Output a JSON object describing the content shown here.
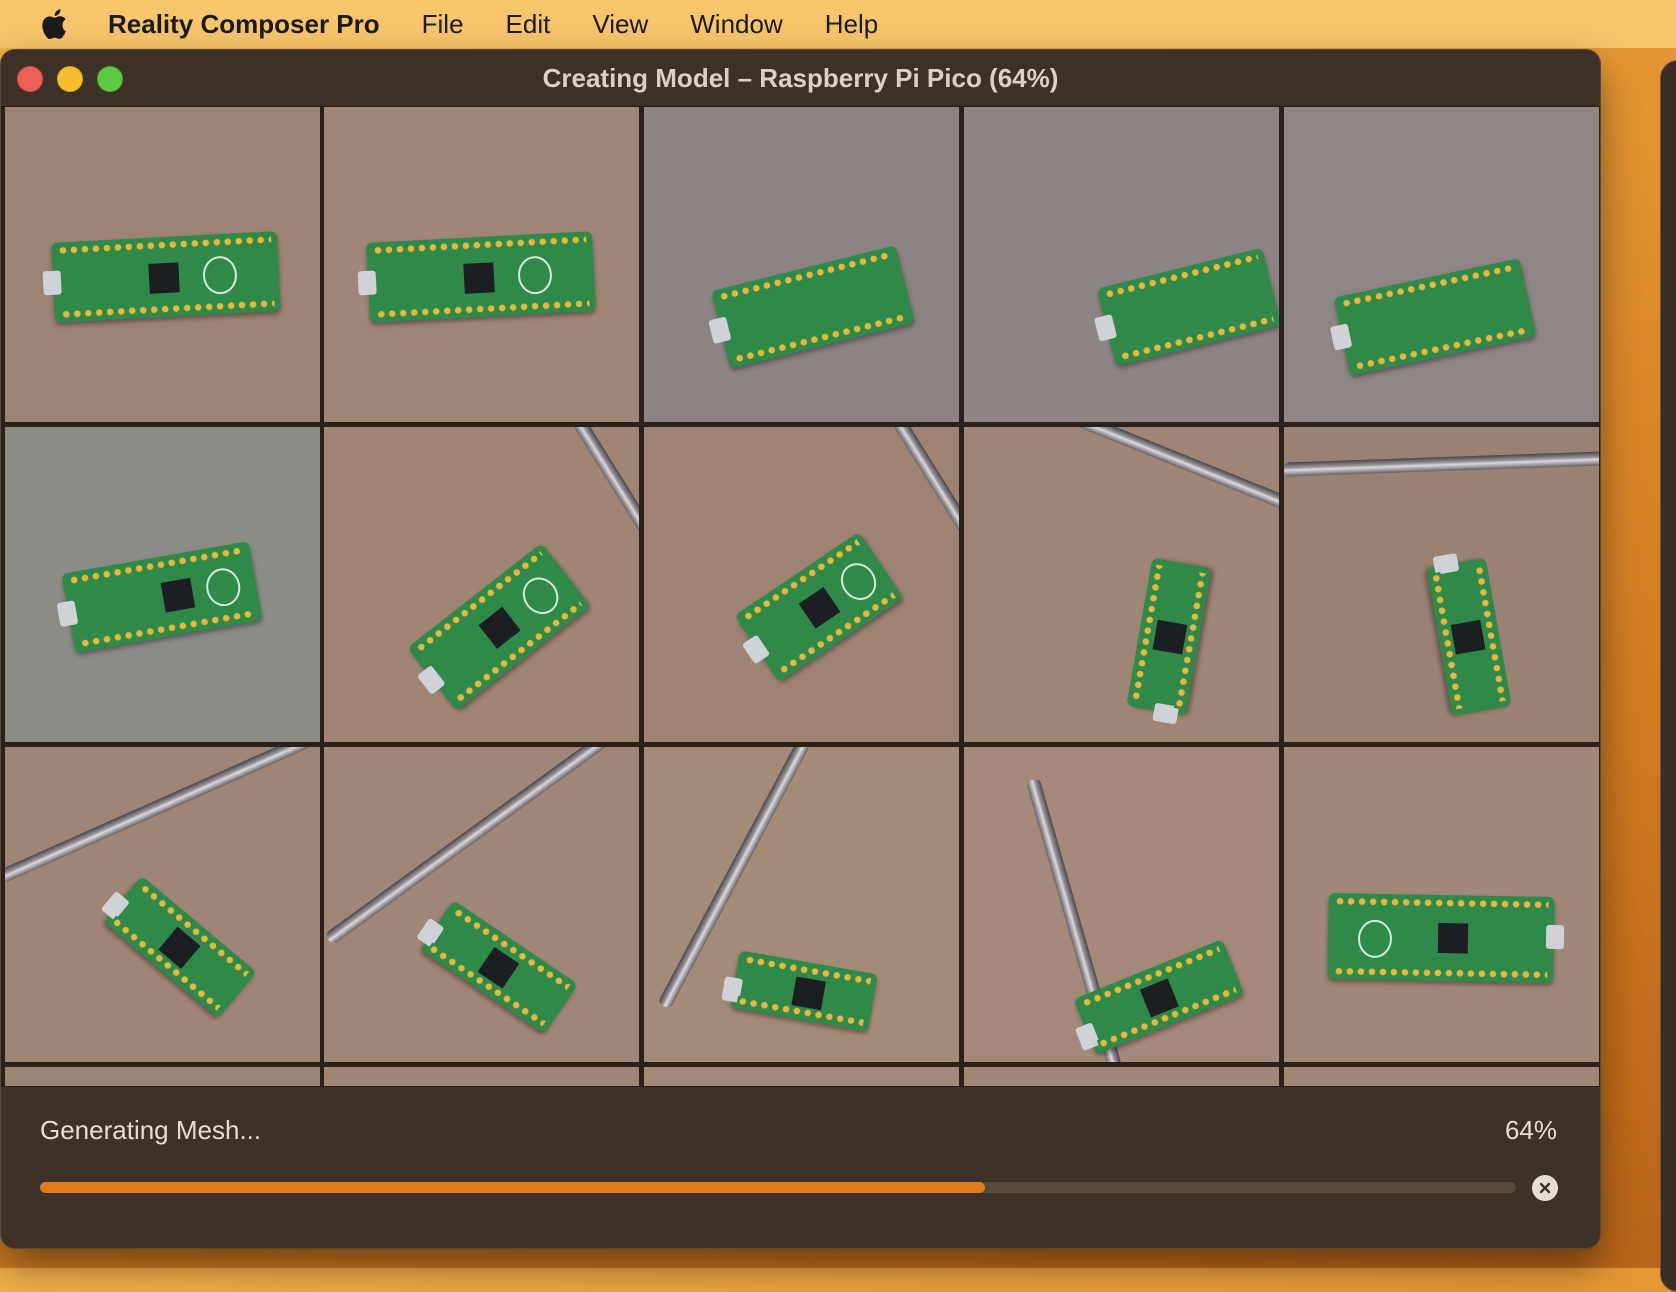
{
  "menubar": {
    "apple_icon": "apple-logo-icon",
    "app_name": "Reality Composer Pro",
    "items": [
      "File",
      "Edit",
      "View",
      "Window",
      "Help"
    ]
  },
  "window": {
    "title": "Creating Model – Raspberry Pi Pico (64%)"
  },
  "grid": {
    "image_count": 15,
    "image_subject": "Raspberry Pi Pico board photo"
  },
  "progress": {
    "status_text": "Generating Mesh...",
    "percent_text": "64%",
    "fraction": 0.64,
    "cancel_icon": "cancel-circle-icon"
  },
  "colors": {
    "accent": "#e07a1c",
    "window_bg": "#3e3127",
    "menubar_bg": "#f7c56b"
  }
}
